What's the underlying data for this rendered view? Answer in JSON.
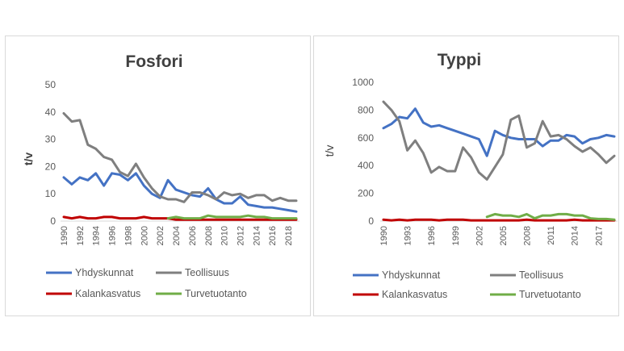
{
  "chart_data": [
    {
      "type": "line",
      "title": "Fosfori",
      "ylabel": "t/v",
      "xlabel": "",
      "ylim": [
        0,
        50
      ],
      "yticks": [
        "0",
        "10",
        "20",
        "30",
        "40",
        "50"
      ],
      "x": [
        1990,
        1991,
        1992,
        1993,
        1994,
        1995,
        1996,
        1997,
        1998,
        1999,
        2000,
        2001,
        2002,
        2003,
        2004,
        2005,
        2006,
        2007,
        2008,
        2009,
        2010,
        2011,
        2012,
        2013,
        2014,
        2015,
        2016,
        2017,
        2018,
        2019
      ],
      "xtick_labels": [
        "1990",
        "1992",
        "1994",
        "1996",
        "1998",
        "2000",
        "2002",
        "2004",
        "2006",
        "2008",
        "2010",
        "2012",
        "2014",
        "2016",
        "2018"
      ],
      "grid": false,
      "legend_position": "bottom",
      "series": [
        {
          "name": "Yhdyskunnat",
          "color": "#4472c4",
          "values": [
            16,
            13.5,
            16,
            15,
            17.5,
            13,
            17.5,
            17,
            15,
            17.5,
            13,
            10,
            8.5,
            15,
            11.5,
            10.5,
            9.5,
            9,
            12,
            8,
            6.5,
            6.5,
            9,
            6,
            5.5,
            5,
            5,
            4.5,
            4,
            3.5
          ]
        },
        {
          "name": "Teollisuus",
          "color": "#7f7f7f",
          "values": [
            39.5,
            36.5,
            37,
            28,
            26.5,
            23.5,
            22.5,
            18,
            16.5,
            21,
            16,
            12,
            9,
            8,
            8,
            7,
            10.5,
            10.5,
            9.5,
            8,
            10.5,
            9.5,
            10,
            8.5,
            9.5,
            9.5,
            7.5,
            8.5,
            7.5,
            7.5
          ]
        },
        {
          "name": "Kalankasvatus",
          "color": "#c00000",
          "values": [
            1.5,
            1,
            1.5,
            1,
            1,
            1.5,
            1.5,
            1,
            1,
            1,
            1.5,
            1,
            1,
            1,
            0.5,
            0.5,
            0.5,
            0.5,
            0.5,
            0.5,
            0.5,
            0.5,
            0.5,
            0.5,
            0.5,
            0.5,
            0.5,
            0.5,
            0.5,
            0.5
          ]
        },
        {
          "name": "Turvetuotanto",
          "color": "#70ad47",
          "values": [
            null,
            null,
            null,
            null,
            null,
            null,
            null,
            null,
            null,
            null,
            null,
            null,
            null,
            1,
            1.5,
            1,
            1,
            1,
            2,
            1.5,
            1.5,
            1.5,
            1.5,
            2,
            1.5,
            1.5,
            1,
            1,
            1,
            1
          ]
        }
      ]
    },
    {
      "type": "line",
      "title": "Typpi",
      "ylabel": "t/v",
      "xlabel": "",
      "ylim": [
        0,
        1000
      ],
      "yticks": [
        "0",
        "200",
        "400",
        "600",
        "800",
        "1000"
      ],
      "x": [
        1990,
        1991,
        1992,
        1993,
        1994,
        1995,
        1996,
        1997,
        1998,
        1999,
        2000,
        2001,
        2002,
        2003,
        2004,
        2005,
        2006,
        2007,
        2008,
        2009,
        2010,
        2011,
        2012,
        2013,
        2014,
        2015,
        2016,
        2017,
        2018,
        2019
      ],
      "xtick_labels": [
        "1990",
        "1993",
        "1996",
        "1999",
        "2002",
        "2005",
        "2008",
        "2011",
        "2014",
        "2017"
      ],
      "grid": false,
      "legend_position": "bottom",
      "series": [
        {
          "name": "Yhdyskunnat",
          "color": "#4472c4",
          "values": [
            670,
            700,
            750,
            740,
            810,
            710,
            680,
            690,
            670,
            650,
            630,
            610,
            590,
            470,
            650,
            620,
            600,
            590,
            590,
            590,
            540,
            580,
            580,
            620,
            610,
            560,
            590,
            600,
            620,
            610
          ]
        },
        {
          "name": "Teollisuus",
          "color": "#7f7f7f",
          "values": [
            860,
            800,
            720,
            510,
            580,
            490,
            350,
            390,
            360,
            360,
            530,
            460,
            350,
            300,
            390,
            480,
            730,
            760,
            530,
            560,
            720,
            610,
            620,
            590,
            540,
            500,
            530,
            480,
            420,
            470
          ]
        },
        {
          "name": "Kalankasvatus",
          "color": "#c00000",
          "values": [
            10,
            5,
            10,
            5,
            10,
            10,
            10,
            5,
            10,
            10,
            10,
            5,
            5,
            5,
            5,
            5,
            5,
            5,
            10,
            5,
            5,
            5,
            5,
            5,
            10,
            5,
            5,
            5,
            5,
            5
          ]
        },
        {
          "name": "Turvetuotanto",
          "color": "#70ad47",
          "values": [
            null,
            null,
            null,
            null,
            null,
            null,
            null,
            null,
            null,
            null,
            null,
            null,
            null,
            30,
            50,
            40,
            40,
            30,
            50,
            20,
            40,
            40,
            50,
            50,
            40,
            40,
            20,
            15,
            15,
            10
          ]
        }
      ]
    }
  ]
}
